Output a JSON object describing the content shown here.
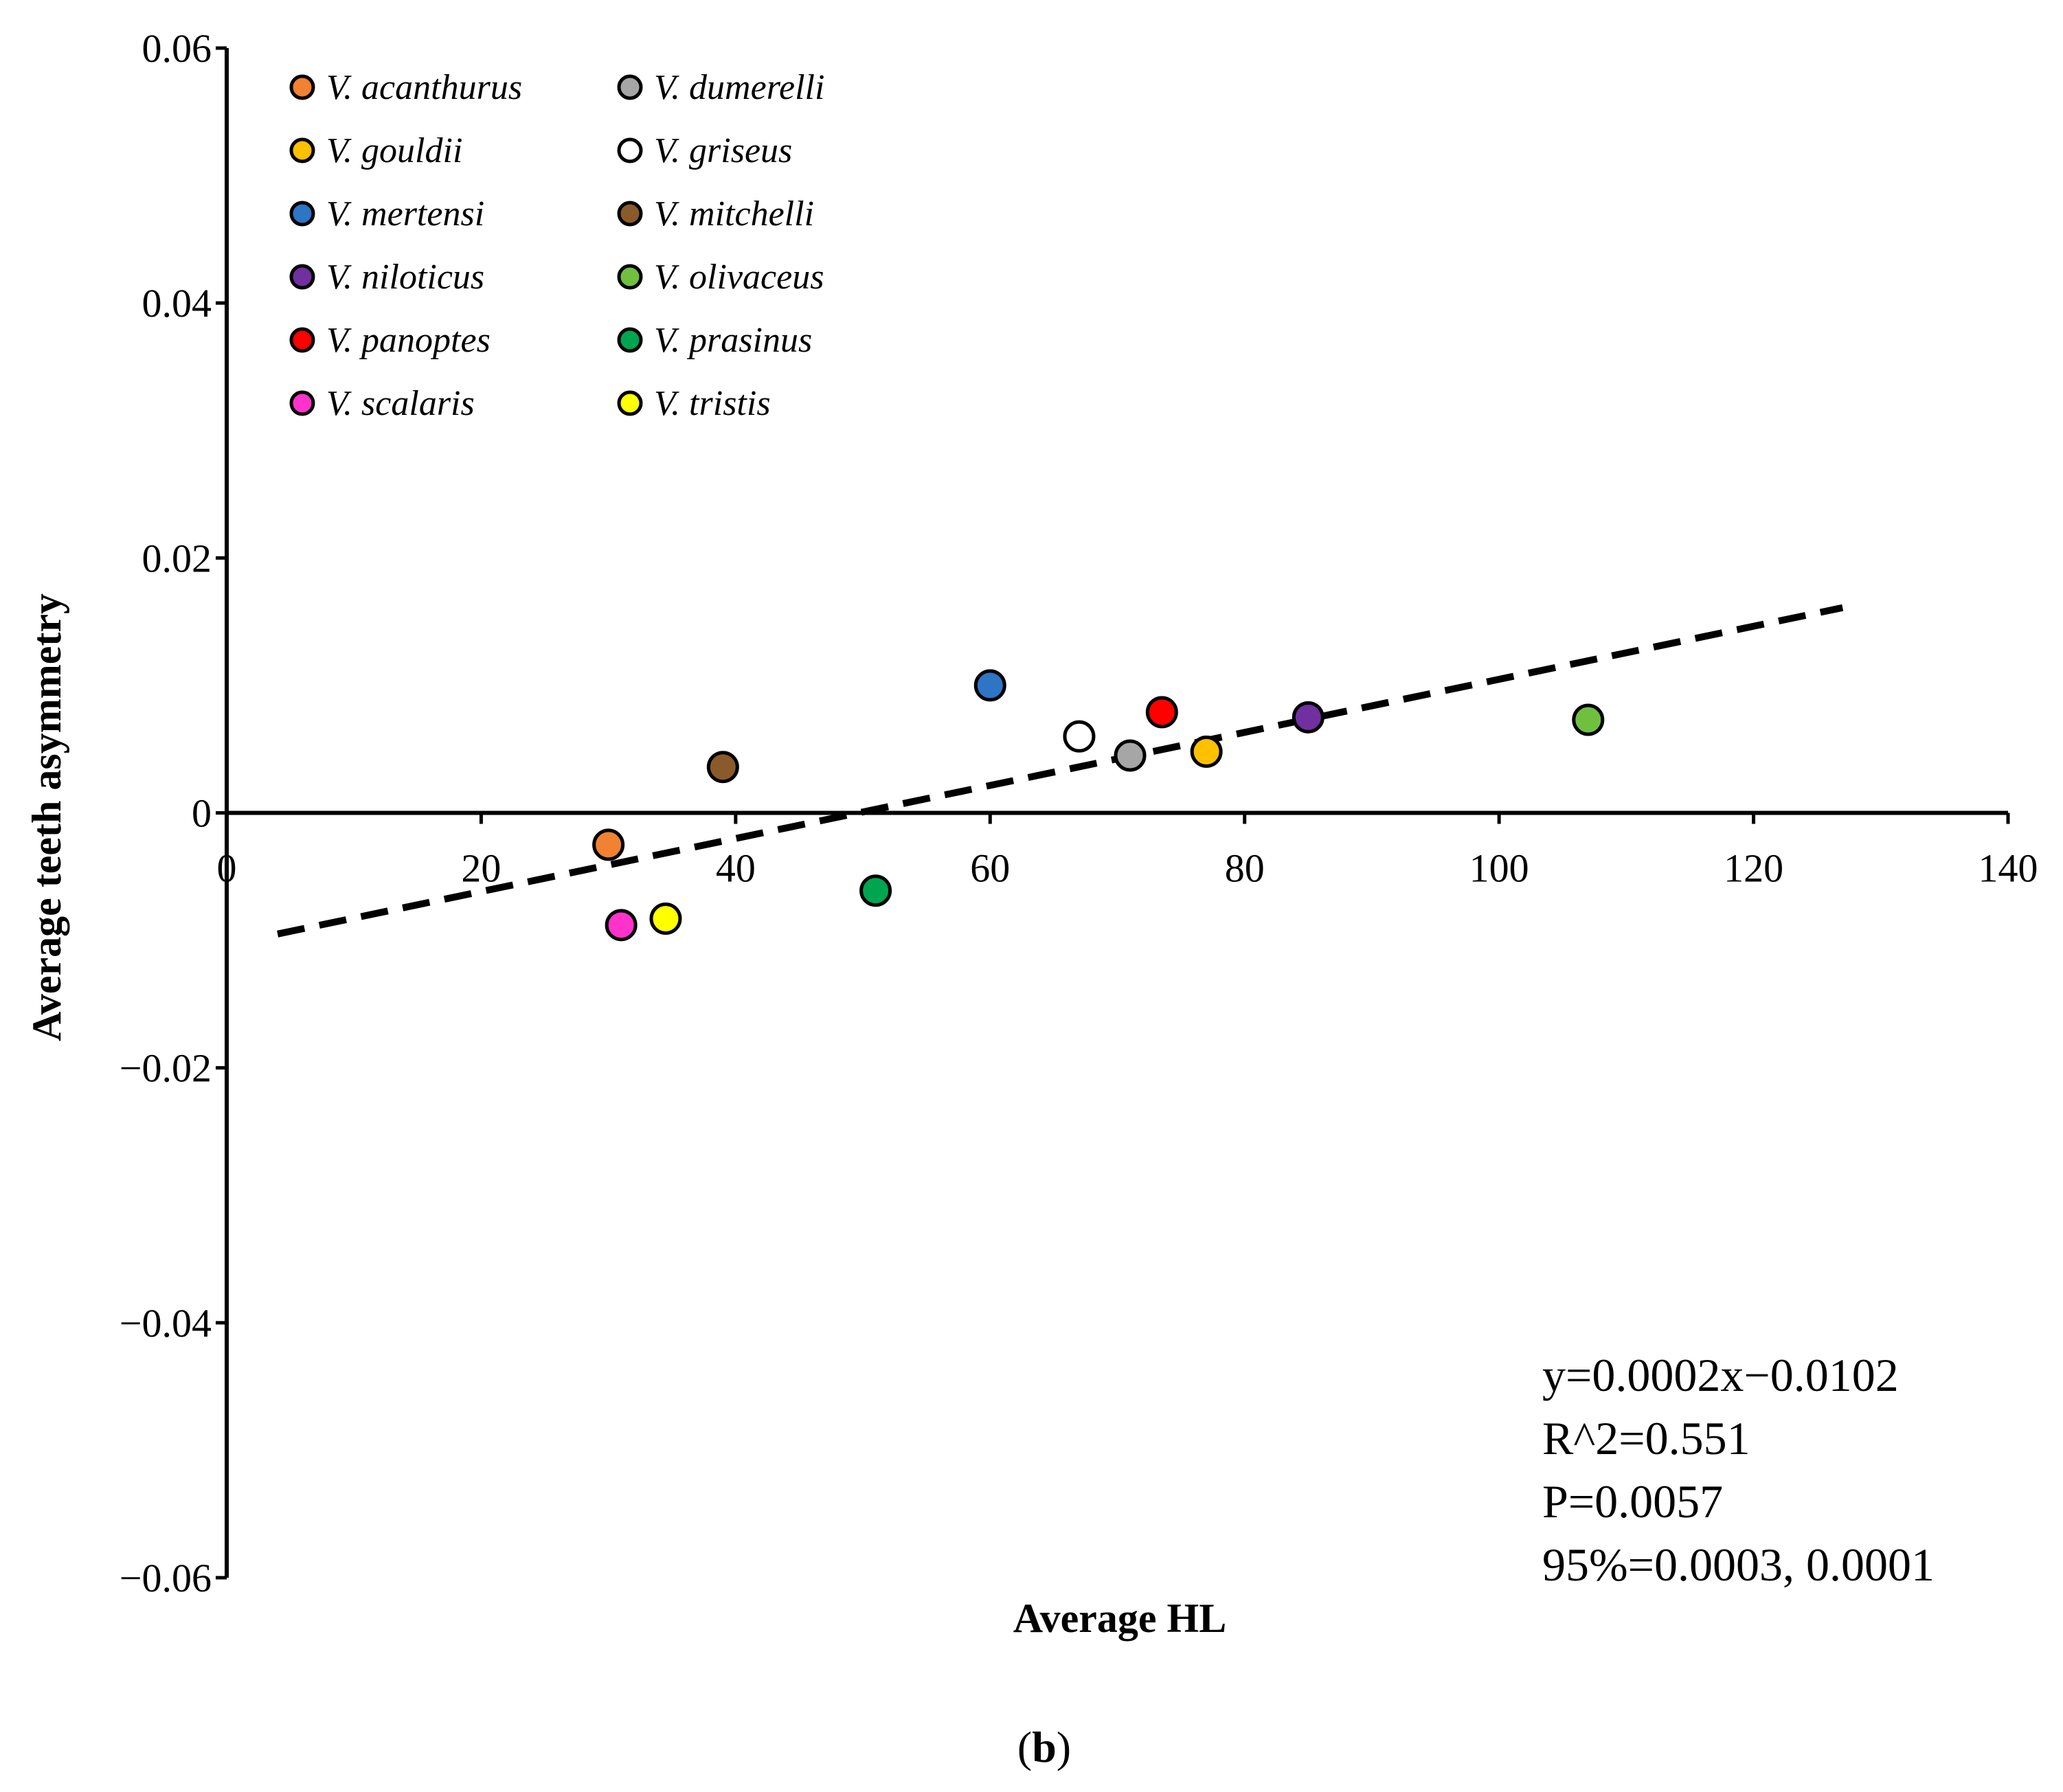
{
  "chart_data": {
    "type": "scatter",
    "title": "",
    "xlabel": "Average HL",
    "ylabel": "Average teeth asymmetry",
    "xlim": [
      0,
      140
    ],
    "ylim": [
      -0.06,
      0.06
    ],
    "x_ticks": [
      0,
      20,
      40,
      60,
      80,
      100,
      120,
      140
    ],
    "x_tick_labels": [
      "0",
      "20",
      "40",
      "60",
      "80",
      "100",
      "120",
      "140"
    ],
    "y_ticks": [
      0.06,
      0.04,
      0.02,
      0,
      -0.02,
      -0.04,
      -0.06
    ],
    "y_tick_labels": [
      "0.06",
      "0.04",
      "0.02",
      "0",
      "−0.02",
      "−0.04",
      "−0.06"
    ],
    "grid": false,
    "legend_position": "top-left",
    "series": [
      {
        "name": "V. acanthurus",
        "color": "#f08232",
        "points": [
          {
            "x": 30,
            "y": -0.0025
          }
        ]
      },
      {
        "name": "V. dumerelli",
        "color": "#a6a6a6",
        "points": [
          {
            "x": 71,
            "y": 0.0045
          }
        ]
      },
      {
        "name": "V. gouldii",
        "color": "#ffc000",
        "points": [
          {
            "x": 77,
            "y": 0.0048
          }
        ]
      },
      {
        "name": "V. griseus",
        "color": "#ffffff",
        "points": [
          {
            "x": 67,
            "y": 0.006
          }
        ]
      },
      {
        "name": "V. mertensi",
        "color": "#2e75c6",
        "points": [
          {
            "x": 60,
            "y": 0.01
          }
        ]
      },
      {
        "name": "V. mitchelli",
        "color": "#8b5a2b",
        "points": [
          {
            "x": 39,
            "y": 0.0036
          }
        ]
      },
      {
        "name": "V. niloticus",
        "color": "#7030a0",
        "points": [
          {
            "x": 85,
            "y": 0.0075
          }
        ]
      },
      {
        "name": "V. olivaceus",
        "color": "#70c040",
        "points": [
          {
            "x": 107,
            "y": 0.0073
          }
        ]
      },
      {
        "name": "V. panoptes",
        "color": "#ff0000",
        "points": [
          {
            "x": 73.5,
            "y": 0.0079
          }
        ]
      },
      {
        "name": "V. prasinus",
        "color": "#00a550",
        "points": [
          {
            "x": 51,
            "y": -0.0061
          }
        ]
      },
      {
        "name": "V. scalaris",
        "color": "#ff33cc",
        "points": [
          {
            "x": 31,
            "y": -0.0088
          }
        ]
      },
      {
        "name": "V. tristis",
        "color": "#ffff00",
        "points": [
          {
            "x": 34.5,
            "y": -0.0083
          }
        ]
      }
    ],
    "trendline": {
      "style": "dashed",
      "color": "#000000",
      "x_start": 4,
      "y_start": -0.0095,
      "x_end": 127,
      "y_end": 0.0161
    },
    "annotations": [
      "y=0.0002x−0.0102",
      "R^2=0.551",
      "P=0.0057",
      "95%=0.0003, 0.0001"
    ],
    "panel_label": {
      "open": "(",
      "letter": "b",
      "close": ")"
    }
  }
}
